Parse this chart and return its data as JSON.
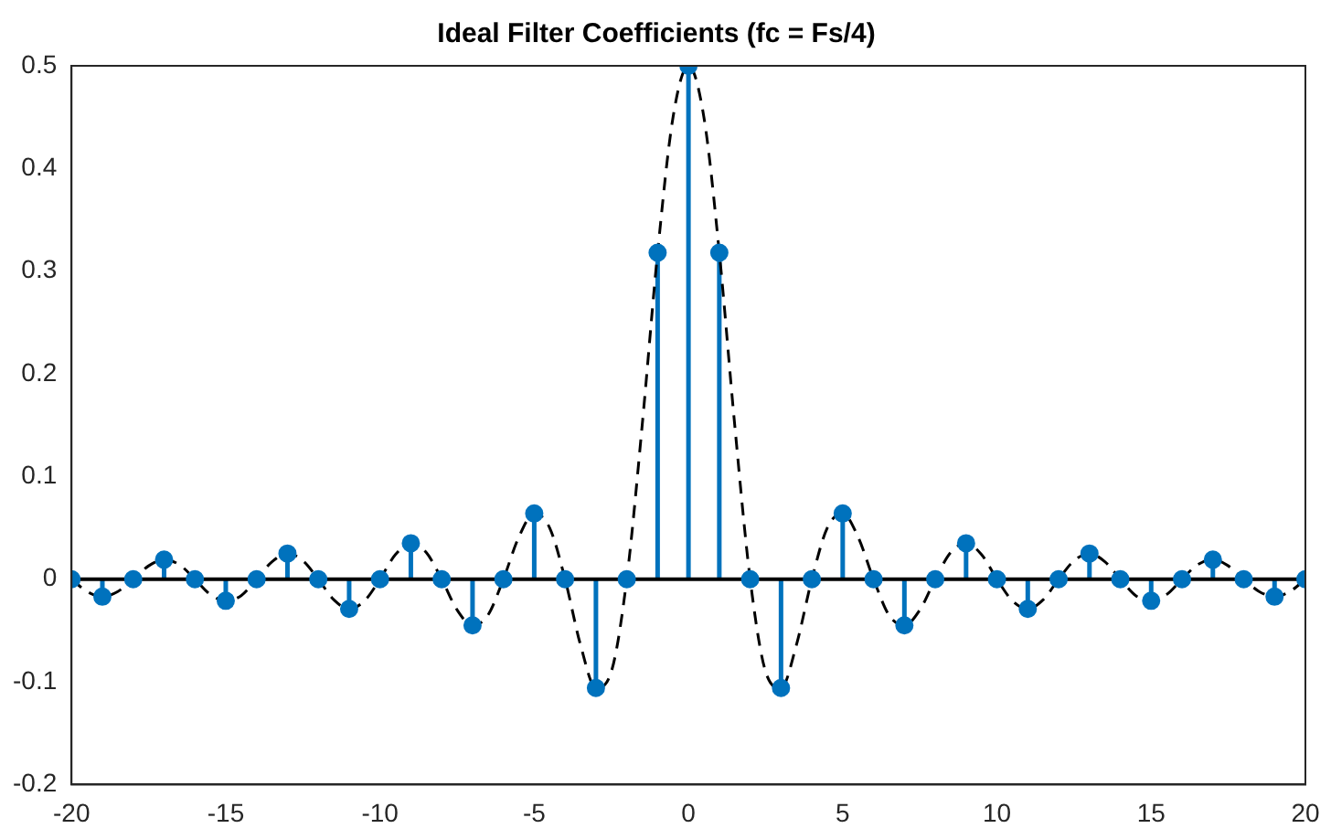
{
  "chart_data": {
    "type": "lollipop",
    "title": "Ideal Filter Coefficients (fc = Fs/4)",
    "xlim": [
      -20,
      20
    ],
    "xticks": [
      -20,
      -15,
      -10,
      -5,
      0,
      5,
      10,
      15,
      20
    ],
    "ylim": [
      -0.2,
      0.5
    ],
    "yticks": [
      -0.2,
      -0.1,
      0,
      0.1,
      0.2,
      0.3,
      0.4,
      0.5
    ],
    "grid": false,
    "legend": false,
    "series": [
      {
        "color": "#0072bd",
        "marker": "circle",
        "x": [
          -20,
          -19,
          -18,
          -17,
          -16,
          -15,
          -14,
          -13,
          -12,
          -11,
          -10,
          -9,
          -8,
          -7,
          -6,
          -5,
          -4,
          -3,
          -2,
          -1,
          0,
          1,
          2,
          3,
          4,
          5,
          6,
          7,
          8,
          9,
          10,
          11,
          12,
          13,
          14,
          15,
          16,
          17,
          18,
          19,
          20
        ],
        "values": [
          0,
          -0.017,
          0,
          0.019,
          0,
          -0.021,
          0,
          0.025,
          0,
          -0.029,
          0,
          0.035,
          0,
          -0.045,
          0,
          0.064,
          0,
          -0.106,
          0,
          0.318,
          0.5,
          0.318,
          0,
          -0.106,
          0,
          0.064,
          0,
          -0.045,
          0,
          0.035,
          0,
          -0.029,
          0,
          0.025,
          0,
          -0.021,
          0,
          0.019,
          0,
          -0.017,
          0
        ]
      },
      {
        "type": "line",
        "color": "#000000",
        "marker": "none",
        "line_style": "dashed",
        "x": [
          -20,
          -19.5,
          -19,
          -18.5,
          -18,
          -17.5,
          -17,
          -16.5,
          -16,
          -15.5,
          -15,
          -14.5,
          -14,
          -13.5,
          -13,
          -12.5,
          -12,
          -11.5,
          -11,
          -10.5,
          -10,
          -9.5,
          -9,
          -8.5,
          -8,
          -7.5,
          -7,
          -6.5,
          -6,
          -5.5,
          -5,
          -4.5,
          -4,
          -3.5,
          -3,
          -2.5,
          -2,
          -1.5,
          -1,
          -0.5,
          0,
          0.5,
          1,
          1.5,
          2,
          2.5,
          3,
          3.5,
          4,
          4.5,
          5,
          5.5,
          6,
          6.5,
          7,
          7.5,
          8,
          8.5,
          9,
          9.5,
          10,
          10.5,
          11,
          11.5,
          12,
          12.5,
          13,
          13.5,
          14,
          14.5,
          15,
          15.5,
          16,
          16.5,
          17,
          17.5,
          18,
          18.5,
          19,
          19.5,
          20
        ],
        "values": [
          0,
          -0.012,
          -0.017,
          -0.012,
          0,
          0.013,
          0.019,
          0.014,
          0,
          -0.015,
          -0.021,
          -0.016,
          0,
          0.017,
          0.025,
          0.018,
          0,
          -0.02,
          -0.029,
          -0.021,
          0,
          0.024,
          0.035,
          0.026,
          0,
          -0.03,
          -0.045,
          -0.035,
          0,
          0.041,
          0.064,
          0.05,
          0,
          -0.064,
          -0.106,
          -0.09,
          0,
          0.15,
          0.318,
          0.45,
          0.5,
          0.45,
          0.318,
          0.15,
          0,
          -0.09,
          -0.106,
          -0.064,
          0,
          0.05,
          0.064,
          0.041,
          0,
          -0.035,
          -0.045,
          -0.03,
          0,
          0.026,
          0.035,
          0.024,
          0,
          -0.021,
          -0.029,
          -0.02,
          0,
          0.018,
          0.025,
          0.017,
          0,
          -0.016,
          -0.021,
          -0.015,
          0,
          0.014,
          0.019,
          0.013,
          0,
          -0.012,
          -0.017,
          -0.012,
          0
        ]
      }
    ]
  }
}
